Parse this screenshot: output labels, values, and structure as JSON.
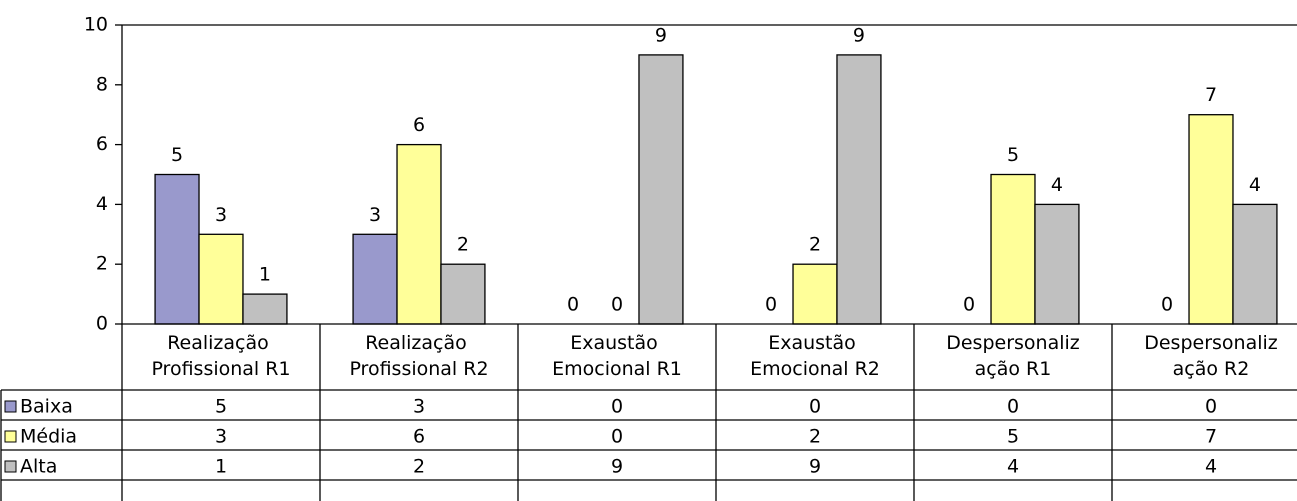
{
  "chart_data": {
    "type": "bar",
    "categories": [
      "Realização Profissional R1",
      "Realização Profissional R2",
      "Exaustão Emocional R1",
      "Exaustão Emocional R2",
      "Despersonalização R1",
      "Despersonalização R2"
    ],
    "series": [
      {
        "name": "Baixa",
        "color": "#9999cc",
        "values": [
          5,
          3,
          0,
          0,
          0,
          0
        ]
      },
      {
        "name": "Média",
        "color": "#ffff99",
        "values": [
          3,
          6,
          0,
          2,
          5,
          7
        ]
      },
      {
        "name": "Alta",
        "color": "#c0c0c0",
        "values": [
          1,
          2,
          9,
          9,
          4,
          4
        ]
      }
    ],
    "ylim": [
      0,
      10
    ],
    "yticks": [
      0,
      2,
      4,
      6,
      8,
      10
    ],
    "data_table": true
  }
}
